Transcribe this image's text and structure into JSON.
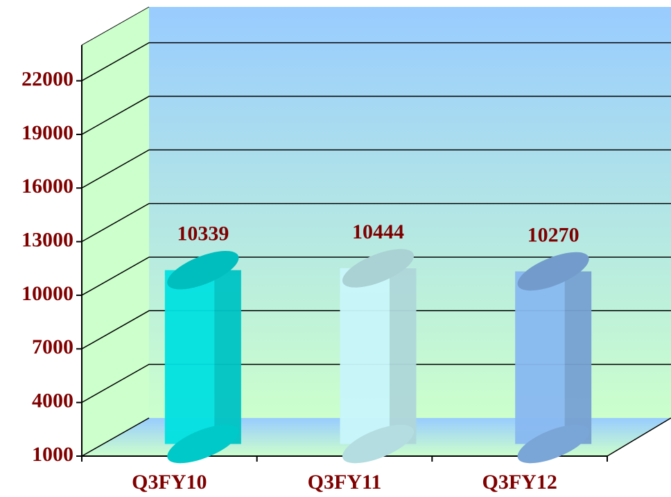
{
  "chart_data": {
    "type": "bar3d",
    "categories": [
      "Q3FY10",
      "Q3FY11",
      "Q3FY12"
    ],
    "values": [
      10339,
      10444,
      10270
    ],
    "colors": [
      "#00e0e0",
      "#c8f6fa",
      "#88b8f0"
    ],
    "ylim": [
      1000,
      24000
    ],
    "yticks": [
      1000,
      4000,
      7000,
      10000,
      13000,
      16000,
      19000,
      22000
    ],
    "grid": true
  }
}
